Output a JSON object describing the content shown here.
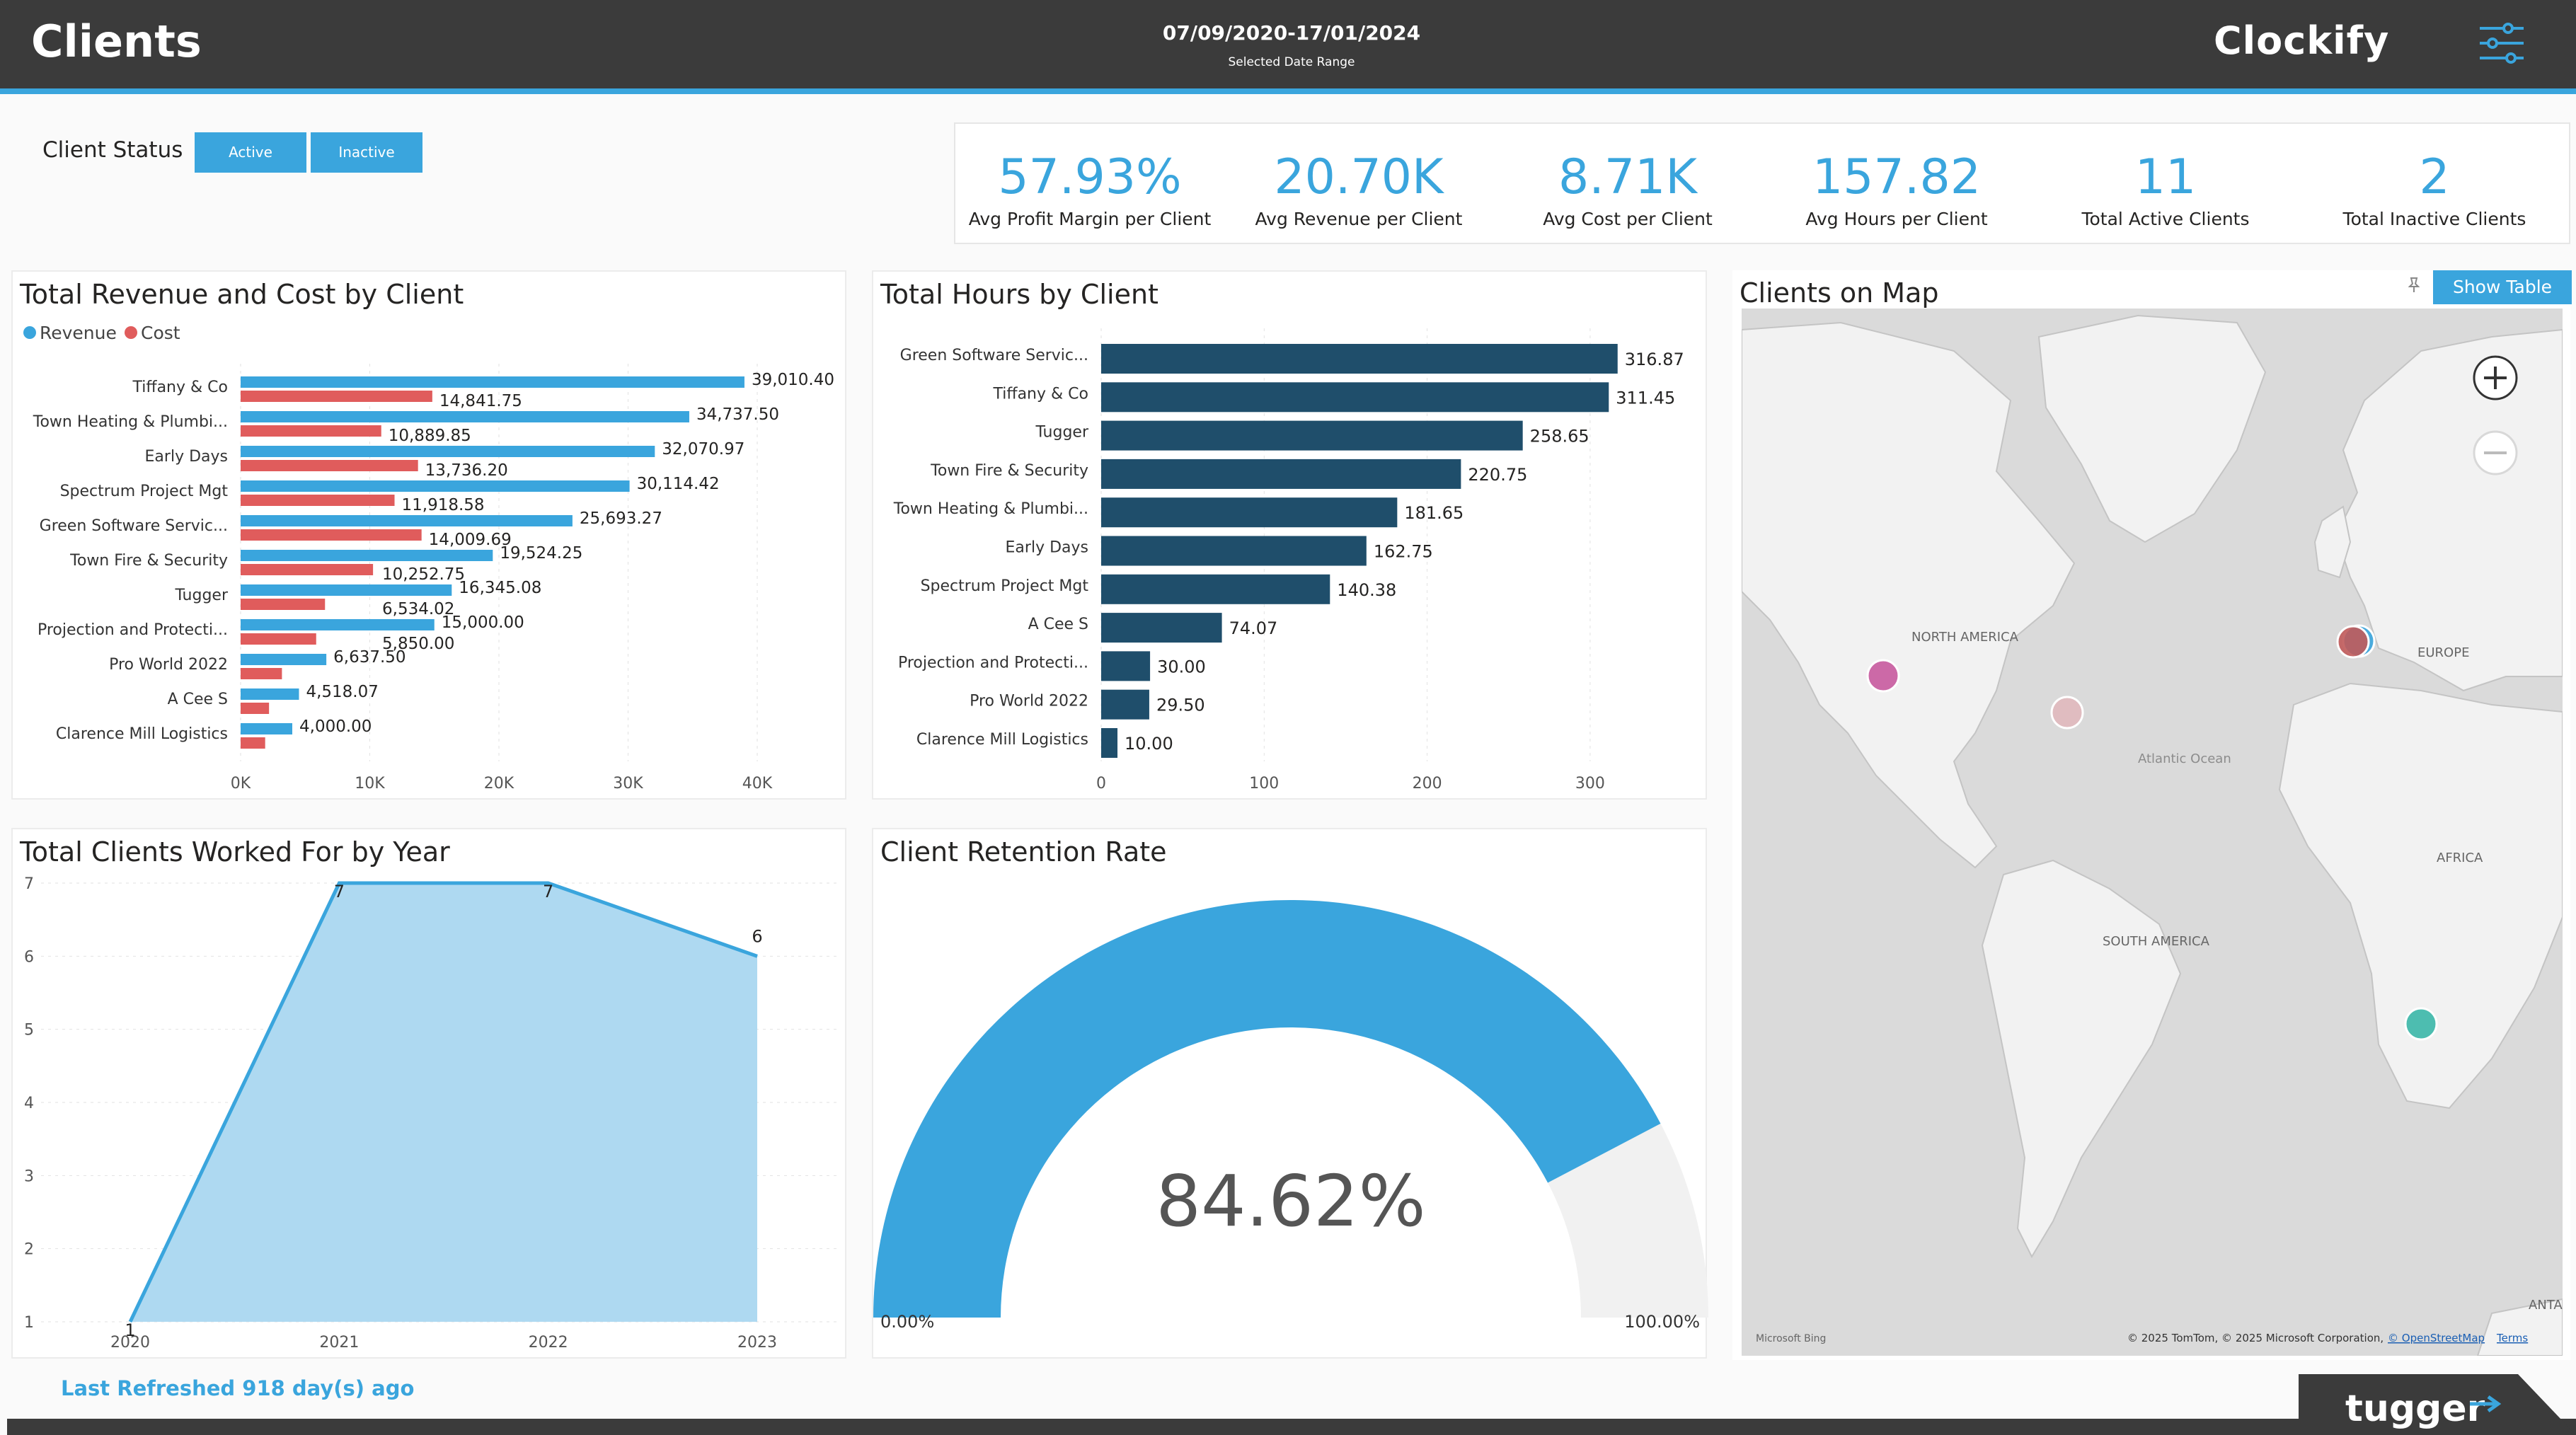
{
  "header": {
    "title": "Clients",
    "date_range": "07/09/2020-17/01/2024",
    "date_caption": "Selected Date Range",
    "logo_text": "Clockify",
    "filter_icon": "sliders-icon"
  },
  "client_status": {
    "label": "Client Status",
    "options": [
      "Active",
      "Inactive"
    ]
  },
  "kpis": [
    {
      "value": "57.93%",
      "label": "Avg Profit Margin per Client"
    },
    {
      "value": "20.70K",
      "label": "Avg Revenue per Client"
    },
    {
      "value": "8.71K",
      "label": "Avg Cost per Client"
    },
    {
      "value": "157.82",
      "label": "Avg Hours per Client"
    },
    {
      "value": "11",
      "label": "Total Active Clients"
    },
    {
      "value": "2",
      "label": "Total Inactive Clients"
    }
  ],
  "colors": {
    "accent": "#3aa5dd",
    "revenue": "#3aa5dd",
    "cost": "#e05c5c",
    "hours_bar": "#1f4e6b",
    "header": "#3b3b3b"
  },
  "chart_data": [
    {
      "type": "bar",
      "orientation": "horizontal",
      "title": "Total Revenue and Cost by Client",
      "legend": "top-left",
      "categories": [
        "Tiffany & Co",
        "Town Heating & Plumbi...",
        "Early Days",
        "Spectrum Project Mgt",
        "Green Software Servic...",
        "Town Fire & Security",
        "Tugger",
        "Projection and Protecti...",
        "Pro World 2022",
        "A Cee S",
        "Clarence Mill Logistics"
      ],
      "series": [
        {
          "name": "Revenue",
          "values": [
            39010.4,
            34737.5,
            32070.97,
            30114.42,
            25693.27,
            19524.25,
            16345.08,
            15000.0,
            6637.5,
            4518.07,
            4000.0
          ],
          "labels": [
            "39,010.40",
            "34,737.50",
            "32,070.97",
            "30,114.42",
            "25,693.27",
            "19,524.25",
            "16,345.08",
            "15,000.00",
            "6,637.50",
            "4,518.07",
            "4,000.00"
          ]
        },
        {
          "name": "Cost",
          "values": [
            14841.75,
            10889.85,
            13736.2,
            11918.58,
            14009.69,
            10252.75,
            6534.02,
            5850.0,
            3200,
            2200,
            1900
          ],
          "labels": [
            "14,841.75",
            "10,889.85",
            "13,736.20",
            "11,918.58",
            "14,009.69",
            "10,252.75",
            "6,534.02",
            "5,850.00",
            "",
            "",
            ""
          ]
        }
      ],
      "xlim": [
        0,
        40000
      ],
      "xticks": [
        "0K",
        "10K",
        "20K",
        "30K",
        "40K"
      ],
      "xtick_values": [
        0,
        10000,
        20000,
        30000,
        40000
      ],
      "grid": true
    },
    {
      "type": "bar",
      "orientation": "horizontal",
      "title": "Total Hours by Client",
      "categories": [
        "Green Software Servic...",
        "Tiffany & Co",
        "Tugger",
        "Town Fire & Security",
        "Town Heating & Plumbi...",
        "Early Days",
        "Spectrum Project Mgt",
        "A Cee S",
        "Projection and Protecti...",
        "Pro World 2022",
        "Clarence Mill Logistics"
      ],
      "values": [
        316.87,
        311.45,
        258.65,
        220.75,
        181.65,
        162.75,
        140.38,
        74.07,
        30.0,
        29.5,
        10.0
      ],
      "labels": [
        "316.87",
        "311.45",
        "258.65",
        "220.75",
        "181.65",
        "162.75",
        "140.38",
        "74.07",
        "30.00",
        "29.50",
        "10.00"
      ],
      "xlim": [
        0,
        330
      ],
      "xticks": [
        "0",
        "100",
        "200",
        "300"
      ],
      "xtick_values": [
        0,
        100,
        200,
        300
      ],
      "grid": true
    },
    {
      "type": "area",
      "title": "Total Clients Worked For by Year",
      "x": [
        "2020",
        "2021",
        "2022",
        "2023"
      ],
      "values": [
        1,
        7,
        7,
        6
      ],
      "ylim": [
        1,
        7
      ],
      "yticks": [
        "1",
        "2",
        "3",
        "4",
        "5",
        "6",
        "7"
      ],
      "ytick_values": [
        1,
        2,
        3,
        4,
        5,
        6,
        7
      ],
      "grid": true
    },
    {
      "type": "gauge",
      "title": "Client Retention Rate",
      "value": 84.62,
      "value_label": "84.62%",
      "min_label": "0.00%",
      "max_label": "100.00%",
      "min": 0,
      "max": 100
    }
  ],
  "map": {
    "title": "Clients on Map",
    "show_table_label": "Show Table",
    "pin_icon": "pin-icon",
    "zoom_in_icon": "zoom-in-icon",
    "zoom_out_icon": "zoom-out-icon",
    "region_labels": [
      "NORTH AMERICA",
      "EUROPE",
      "Atlantic Ocean",
      "AFRICA",
      "SOUTH AMERICA",
      "ANTA"
    ],
    "attribution": "© 2025 TomTom, © 2025 Microsoft Corporation,",
    "osm_link": "© OpenStreetMap",
    "terms_link": "Terms",
    "bing_label": "Microsoft Bing",
    "marker_colors": [
      "#c85a9e",
      "#e0b8bd",
      "#c05a5a",
      "#3aa5dd",
      "#3bb7a8"
    ]
  },
  "footer": {
    "refreshed": "Last Refreshed 918 day(s) ago",
    "brand": "tugger"
  }
}
